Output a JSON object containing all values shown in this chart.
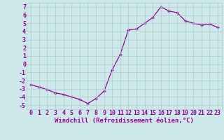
{
  "x": [
    0,
    1,
    2,
    3,
    4,
    5,
    6,
    7,
    8,
    9,
    10,
    11,
    12,
    13,
    14,
    15,
    16,
    17,
    18,
    19,
    20,
    21,
    22,
    23
  ],
  "y": [
    -2.5,
    -2.8,
    -3.1,
    -3.5,
    -3.7,
    -4.0,
    -4.3,
    -4.8,
    -4.2,
    -3.3,
    -0.7,
    1.2,
    4.2,
    4.3,
    5.0,
    5.7,
    7.0,
    6.5,
    6.3,
    5.3,
    5.0,
    4.8,
    4.9,
    4.5
  ],
  "line_color": "#990099",
  "marker": "+",
  "markersize": 3.5,
  "linewidth": 0.9,
  "bg_color": "#cce8e8",
  "grid_color": "#aacccc",
  "xlabel": "Windchill (Refroidissement éolien,°C)",
  "xlim": [
    -0.5,
    23.5
  ],
  "ylim": [
    -5.5,
    7.5
  ],
  "yticks": [
    -5,
    -4,
    -3,
    -2,
    -1,
    0,
    1,
    2,
    3,
    4,
    5,
    6,
    7
  ],
  "xticks": [
    0,
    1,
    2,
    3,
    4,
    5,
    6,
    7,
    8,
    9,
    10,
    11,
    12,
    13,
    14,
    15,
    16,
    17,
    18,
    19,
    20,
    21,
    22,
    23
  ],
  "xlabel_fontsize": 6.5,
  "tick_fontsize": 6.0,
  "label_color": "#990099"
}
